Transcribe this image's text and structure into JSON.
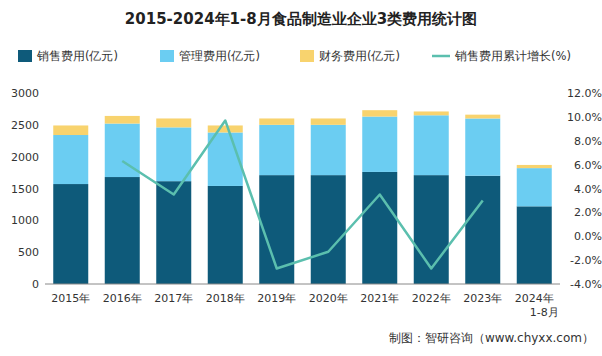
{
  "chart_data": {
    "type": "bar",
    "title": "2015-2024年1-8月食品制造业企业3类费用统计图",
    "source": "制图：智研咨询（www.chyxx.com）",
    "categories": [
      "2015年",
      "2016年",
      "2017年",
      "2018年",
      "2019年",
      "2020年",
      "2021年",
      "2022年",
      "2023年",
      "2024年1-8月"
    ],
    "stacked": true,
    "grid": false,
    "legend": "top",
    "ylim": [
      0,
      3000
    ],
    "yticks": [
      0,
      500,
      1000,
      1500,
      2000,
      2500,
      3000
    ],
    "y2lim": [
      -4,
      12
    ],
    "y2ticks": [
      {
        "value": -4,
        "label": "-4.0%"
      },
      {
        "value": -2,
        "label": "-2.0%"
      },
      {
        "value": 0,
        "label": "0.0%"
      },
      {
        "value": 2,
        "label": "2.0%"
      },
      {
        "value": 4,
        "label": "4.0%"
      },
      {
        "value": 6,
        "label": "6.0%"
      },
      {
        "value": 8,
        "label": "8.0%"
      },
      {
        "value": 10,
        "label": "10.0%"
      },
      {
        "value": 12,
        "label": "12.0%"
      }
    ],
    "series": [
      {
        "name": "销售费用(亿元)",
        "color": "#0e5a7a",
        "type": "bar",
        "values": [
          1570,
          1680,
          1615,
          1540,
          1710,
          1710,
          1760,
          1710,
          1700,
          1220
        ]
      },
      {
        "name": "管理费用(亿元)",
        "color": "#6bcdf2",
        "type": "bar",
        "values": [
          770,
          840,
          845,
          840,
          790,
          790,
          870,
          940,
          900,
          600
        ]
      },
      {
        "name": "财务费用(亿元)",
        "color": "#f8d36e",
        "type": "bar",
        "values": [
          150,
          120,
          140,
          110,
          100,
          100,
          100,
          60,
          60,
          50
        ]
      },
      {
        "name": "销售费用累计增长(%)",
        "color": "#5bbfae",
        "type": "line",
        "axis": "y2",
        "values": [
          null,
          6.3,
          3.5,
          9.7,
          -2.7,
          -1.3,
          3.5,
          -2.7,
          3.0,
          null
        ]
      }
    ]
  }
}
